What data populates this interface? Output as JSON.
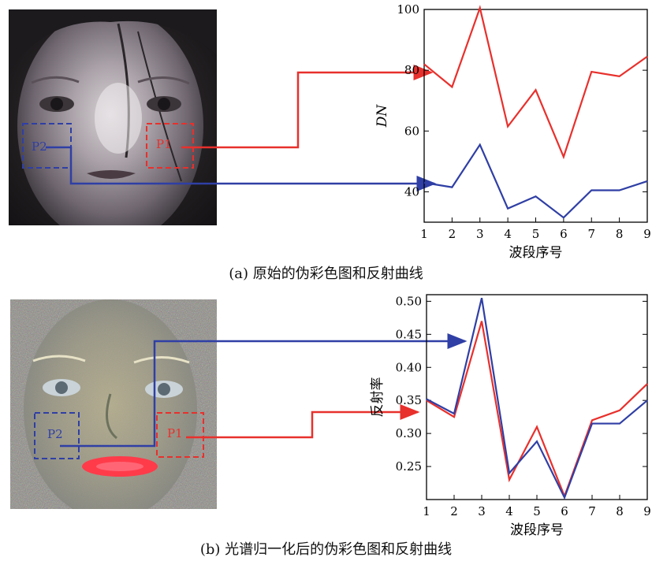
{
  "figure_a": {
    "caption": "(a) 原始的伪彩色图和反射曲线",
    "roi_labels": [
      "P2",
      "P1"
    ]
  },
  "figure_b": {
    "caption": "(b) 光谱归一化后的伪彩色图和反射曲线",
    "roi_labels": [
      "P2",
      "P1"
    ]
  },
  "colors": {
    "p1": "#e8302c",
    "p2": "#2f3fa5",
    "axis": "#000000"
  },
  "chart_data": [
    {
      "type": "line",
      "xlabel": "波段序号",
      "ylabel": "DN",
      "x": [
        1,
        2,
        3,
        4,
        5,
        6,
        7,
        8,
        9
      ],
      "xlim": [
        1,
        9
      ],
      "ylim": [
        30,
        100
      ],
      "yticks": [
        40,
        60,
        80,
        100
      ],
      "series": [
        {
          "values": [
            82,
            74.5,
            100.5,
            61.5,
            73.5,
            51.5,
            79.5,
            78,
            84.5
          ]
        },
        {
          "values": [
            43,
            41.5,
            55.5,
            34.5,
            38.5,
            31.5,
            40.5,
            40.5,
            43.5
          ]
        }
      ]
    },
    {
      "type": "line",
      "xlabel": "波段序号",
      "ylabel": "反射率",
      "x": [
        1,
        2,
        3,
        4,
        5,
        6,
        7,
        8,
        9
      ],
      "xlim": [
        1,
        9
      ],
      "ylim": [
        0.2,
        0.51
      ],
      "yticks": [
        0.25,
        0.3,
        0.35,
        0.4,
        0.45,
        0.5
      ],
      "series": [
        {
          "values": [
            0.35,
            0.325,
            0.47,
            0.23,
            0.31,
            0.205,
            0.32,
            0.335,
            0.375
          ]
        },
        {
          "values": [
            0.352,
            0.33,
            0.505,
            0.24,
            0.288,
            0.203,
            0.315,
            0.315,
            0.35
          ]
        }
      ]
    }
  ]
}
